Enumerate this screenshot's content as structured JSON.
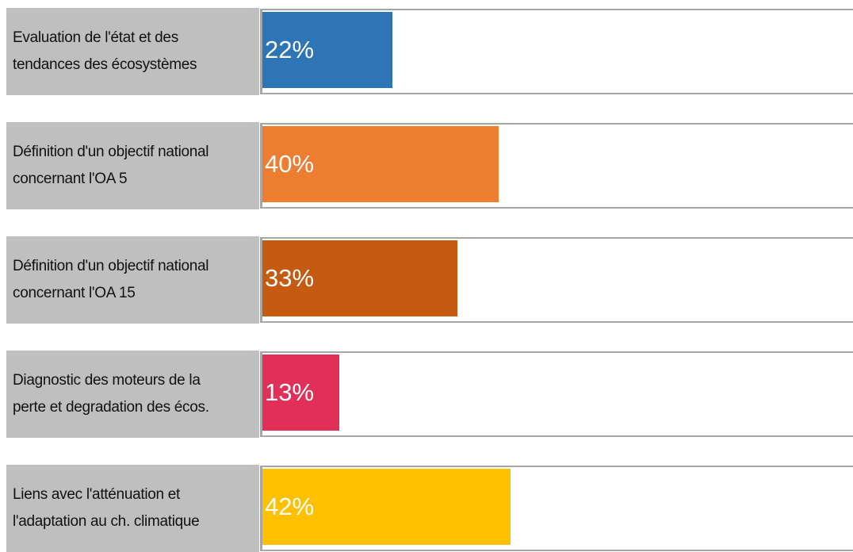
{
  "chart_data": {
    "type": "bar",
    "orientation": "horizontal",
    "categories": [
      "Evaluation de l'état et des\ntendances des écosystèmes",
      "Définition d'un objectif national\nconcernant l'OA 5",
      "Définition d'un objectif national\nconcernant l'OA 15",
      "Diagnostic des moteurs de la\nperte et degradation des écos.",
      "Liens avec l'atténuation et\nl'adaptation au ch. climatique"
    ],
    "values": [
      22,
      40,
      33,
      13,
      42
    ],
    "value_labels": [
      "22%",
      "40%",
      "33%",
      "13%",
      "42%"
    ],
    "colors": [
      "#2e75b6",
      "#ed7d31",
      "#c55a11",
      "#e02f58",
      "#ffc000"
    ],
    "xlim": [
      0,
      100
    ]
  }
}
